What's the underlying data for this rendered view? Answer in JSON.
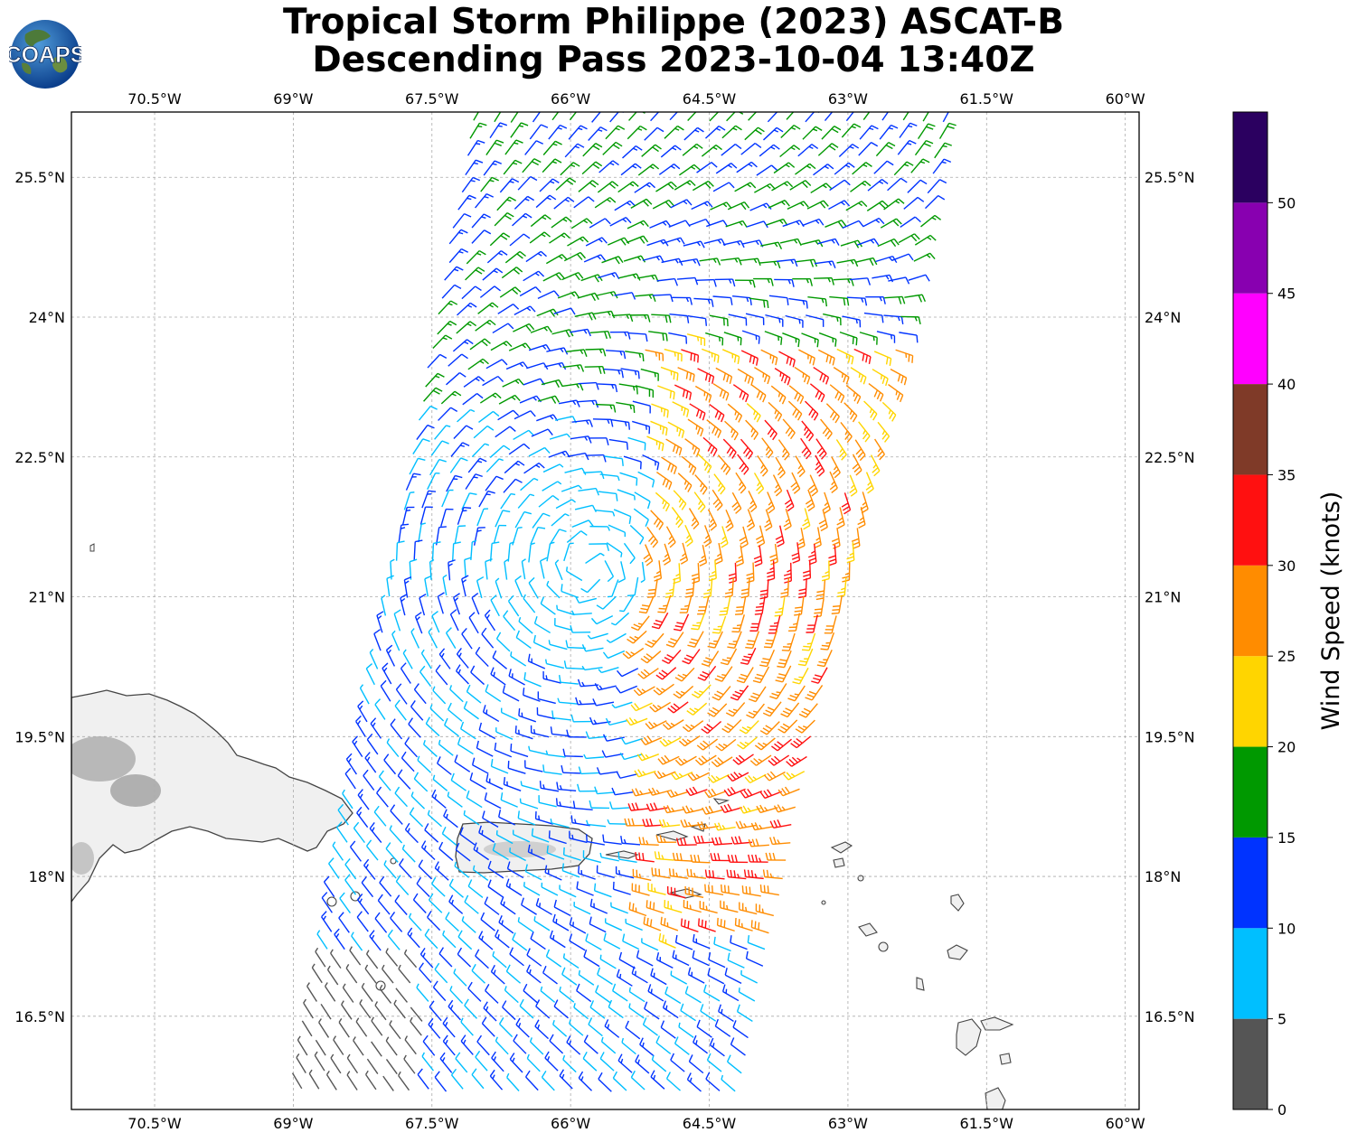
{
  "title": {
    "line1": "Tropical Storm Philippe (2023) ASCAT-B",
    "line2": "Descending Pass 2023-10-04 13:40Z"
  },
  "logo": {
    "text": "COAPS",
    "icon": "globe-logo-icon"
  },
  "map": {
    "lon_labels": [
      "70.5°W",
      "69°W",
      "67.5°W",
      "66°W",
      "64.5°W",
      "63°W",
      "61.5°W",
      "60°W"
    ],
    "lon_values": [
      -70.5,
      -69,
      -67.5,
      -66,
      -64.5,
      -63,
      -61.5,
      -60
    ],
    "lat_labels": [
      "25.5°N",
      "24°N",
      "22.5°N",
      "21°N",
      "19.5°N",
      "18°N",
      "16.5°N"
    ],
    "lat_values": [
      25.5,
      24,
      22.5,
      21,
      19.5,
      18,
      16.5
    ],
    "lon_range": [
      -71.4,
      -59.85
    ],
    "lat_range": [
      15.5,
      26.2
    ],
    "storm_center": {
      "lon": -65.8,
      "lat": 21.3
    },
    "land_color": "#f0f0f0",
    "coast_color": "#444444",
    "grid": true
  },
  "colorbar": {
    "label": "Wind Speed (knots)",
    "ticks": [
      "0",
      "5",
      "10",
      "15",
      "20",
      "25",
      "30",
      "35",
      "40",
      "45",
      "50"
    ],
    "bins": [
      {
        "min": 0,
        "max": 5,
        "color": "#555555"
      },
      {
        "min": 5,
        "max": 10,
        "color": "#00bfff"
      },
      {
        "min": 10,
        "max": 15,
        "color": "#0033ff"
      },
      {
        "min": 15,
        "max": 20,
        "color": "#009900"
      },
      {
        "min": 20,
        "max": 25,
        "color": "#ffd500"
      },
      {
        "min": 25,
        "max": 30,
        "color": "#ff8c00"
      },
      {
        "min": 30,
        "max": 35,
        "color": "#ff1010"
      },
      {
        "min": 35,
        "max": 40,
        "color": "#7f3a28"
      },
      {
        "min": 40,
        "max": 45,
        "color": "#ff00ff"
      },
      {
        "min": 45,
        "max": 50,
        "color": "#8800b0"
      },
      {
        "min": 50,
        "max": 55,
        "color": "#2b0060"
      }
    ]
  }
}
